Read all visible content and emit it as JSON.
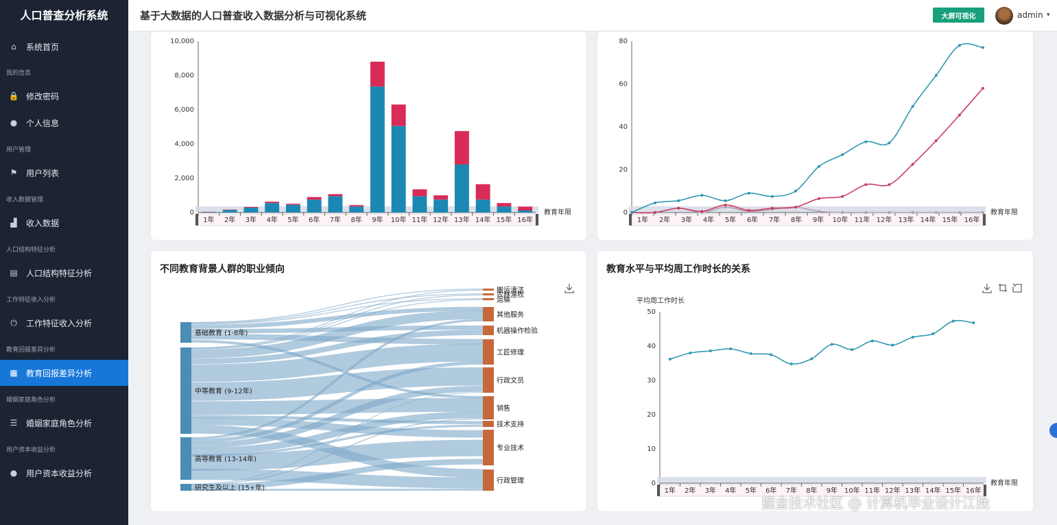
{
  "app": {
    "title": "人口普查分析系统"
  },
  "header": {
    "title": "基于大数据的人口普查收入数据分析与可视化系统",
    "big_screen_label": "大屏可视化",
    "username": "admin",
    "caret": "▾"
  },
  "sidebar": {
    "items": [
      {
        "label": "系统首页",
        "icon": "home-icon",
        "glyph": "⌂"
      },
      {
        "group": "我的信息"
      },
      {
        "label": "修改密码",
        "icon": "lock-icon",
        "glyph": "🔒"
      },
      {
        "label": "个人信息",
        "icon": "user-icon",
        "glyph": "●"
      },
      {
        "group": "用户管理"
      },
      {
        "label": "用户列表",
        "icon": "flag-icon",
        "glyph": "⚑"
      },
      {
        "group": "收入数据管理"
      },
      {
        "label": "收入数据",
        "icon": "chart-icon",
        "glyph": "▟"
      },
      {
        "group": "人口结构特征分析"
      },
      {
        "label": "人口结构特征分析",
        "icon": "clipboard-icon",
        "glyph": "▤"
      },
      {
        "group": "工作特征收入分析"
      },
      {
        "label": "工作特征收入分析",
        "icon": "power-icon",
        "glyph": "⏻"
      },
      {
        "group": "教育回报差异分析"
      },
      {
        "label": "教育回报差异分析",
        "icon": "grid-icon",
        "glyph": "▦",
        "active": true
      },
      {
        "group": "婚姻家庭角色分析"
      },
      {
        "label": "婚姻家庭角色分析",
        "icon": "list-icon",
        "glyph": "☰"
      },
      {
        "group": "用户资本收益分析"
      },
      {
        "label": "用户资本收益分析",
        "icon": "bulb-icon",
        "glyph": "●"
      }
    ]
  },
  "colors": {
    "accent": "#1677d9",
    "sidebar_bg": "#1c2433",
    "btn_green": "#17a07b",
    "bar_blue": "#1b88b4",
    "bar_red": "#d92b55",
    "line_teal": "#2f97b3",
    "line_red": "#c83d62",
    "sankey_left": "#4b8db6",
    "sankey_right": "#c7683a"
  },
  "watermark": "掘金技术社区 @ 计算机毕业设计江挽",
  "chart_data": [
    {
      "id": "stacked-bar",
      "type": "bar",
      "title": "",
      "xlabel": "教育年限",
      "ylabel": "",
      "yticks": [
        "0",
        "2,000",
        "4,000",
        "6,000",
        "8,000",
        "10,000"
      ],
      "ylim": [
        0,
        10000
      ],
      "categories": [
        "1年",
        "2年",
        "3年",
        "4年",
        "5年",
        "6年",
        "7年",
        "8年",
        "9年",
        "10年",
        "11年",
        "12年",
        "13年",
        "14年",
        "15年",
        "16年"
      ],
      "series": [
        {
          "color": "#1b88b4",
          "values": [
            20,
            150,
            280,
            550,
            450,
            750,
            950,
            350,
            7350,
            5050,
            950,
            750,
            2800,
            750,
            350,
            120
          ]
        },
        {
          "color": "#d92b55",
          "values": [
            20,
            20,
            40,
            80,
            60,
            150,
            120,
            80,
            1450,
            1250,
            400,
            250,
            1950,
            900,
            200,
            220
          ]
        }
      ]
    },
    {
      "id": "line-two",
      "type": "line",
      "title": "",
      "xlabel": "教育年限",
      "yticks": [
        "0",
        "20",
        "40",
        "60",
        "80"
      ],
      "ylim": [
        0,
        80
      ],
      "categories": [
        "1年",
        "2年",
        "3年",
        "4年",
        "5年",
        "6年",
        "7年",
        "8年",
        "9年",
        "10年",
        "11年",
        "12年",
        "13年",
        "14年",
        "15年",
        "16年"
      ],
      "series": [
        {
          "color": "#2f97b3",
          "values": [
            0,
            4.5,
            5.5,
            8,
            5.5,
            9,
            7.5,
            10,
            21.5,
            27,
            33,
            32.5,
            49.5,
            64,
            78,
            77
          ]
        },
        {
          "color": "#c83d62",
          "values": [
            0,
            0,
            2,
            0.5,
            3.5,
            1,
            2,
            2.5,
            6.5,
            7.5,
            13,
            13,
            22.5,
            33.5,
            45.5,
            58
          ]
        },
        {
          "color": "#b39db3",
          "values": [
            0,
            0,
            2,
            0,
            2.5,
            0.5,
            1.5,
            2.5,
            0.5,
            0,
            0,
            0,
            0,
            0,
            0,
            0
          ]
        }
      ]
    },
    {
      "id": "sankey",
      "type": "sankey",
      "title": "不同教育背景人群的职业倾向",
      "sources": [
        {
          "label": "基础教育 (1-8年)"
        },
        {
          "label": "中等教育 (9-12年)"
        },
        {
          "label": "高等教育 (13-14年)"
        },
        {
          "label": "研究生及以上 (15+年)"
        }
      ],
      "targets": [
        {
          "label": "搬运清洁"
        },
        {
          "label": "农林渔牧"
        },
        {
          "label": "运输"
        },
        {
          "label": "其他服务"
        },
        {
          "label": "机器操作检验"
        },
        {
          "label": "工匠修理"
        },
        {
          "label": "行政文员"
        },
        {
          "label": "销售"
        },
        {
          "label": "技术支持"
        },
        {
          "label": "专业技术"
        },
        {
          "label": "行政管理"
        }
      ],
      "links": [
        {
          "s": 0,
          "t": 0,
          "v": 1
        },
        {
          "s": 0,
          "t": 1,
          "v": 1
        },
        {
          "s": 0,
          "t": 2,
          "v": 1
        },
        {
          "s": 0,
          "t": 3,
          "v": 6
        },
        {
          "s": 0,
          "t": 4,
          "v": 6
        },
        {
          "s": 0,
          "t": 5,
          "v": 8
        },
        {
          "s": 0,
          "t": 7,
          "v": 4
        },
        {
          "s": 1,
          "t": 0,
          "v": 1
        },
        {
          "s": 1,
          "t": 1,
          "v": 1
        },
        {
          "s": 1,
          "t": 2,
          "v": 1
        },
        {
          "s": 1,
          "t": 3,
          "v": 14
        },
        {
          "s": 1,
          "t": 4,
          "v": 8
        },
        {
          "s": 1,
          "t": 5,
          "v": 28
        },
        {
          "s": 1,
          "t": 6,
          "v": 28
        },
        {
          "s": 1,
          "t": 7,
          "v": 22
        },
        {
          "s": 1,
          "t": 8,
          "v": 4
        },
        {
          "s": 1,
          "t": 9,
          "v": 10
        },
        {
          "s": 1,
          "t": 10,
          "v": 14
        },
        {
          "s": 2,
          "t": 3,
          "v": 4
        },
        {
          "s": 2,
          "t": 5,
          "v": 6
        },
        {
          "s": 2,
          "t": 6,
          "v": 10
        },
        {
          "s": 2,
          "t": 7,
          "v": 12
        },
        {
          "s": 2,
          "t": 8,
          "v": 3
        },
        {
          "s": 2,
          "t": 9,
          "v": 24
        },
        {
          "s": 2,
          "t": 10,
          "v": 20
        },
        {
          "s": 3,
          "t": 6,
          "v": 1
        },
        {
          "s": 3,
          "t": 7,
          "v": 2
        },
        {
          "s": 3,
          "t": 9,
          "v": 9
        },
        {
          "s": 3,
          "t": 10,
          "v": 4
        }
      ]
    },
    {
      "id": "line-hours",
      "type": "line",
      "title": "教育水平与平均周工作时长的关系",
      "xlabel": "教育年限",
      "ylabel": "平均周工作时长",
      "yticks": [
        "0",
        "10",
        "20",
        "30",
        "40",
        "50"
      ],
      "ylim": [
        0,
        50
      ],
      "categories": [
        "1年",
        "2年",
        "3年",
        "4年",
        "5年",
        "6年",
        "7年",
        "8年",
        "9年",
        "10年",
        "11年",
        "12年",
        "13年",
        "14年",
        "15年",
        "16年"
      ],
      "series": [
        {
          "color": "#2f97b3",
          "values": [
            36.2,
            38,
            38.6,
            39.2,
            37.8,
            37.5,
            34.8,
            36.3,
            40.5,
            39,
            41.5,
            40.3,
            42.6,
            43.6,
            47.3,
            46.8
          ]
        }
      ]
    }
  ]
}
